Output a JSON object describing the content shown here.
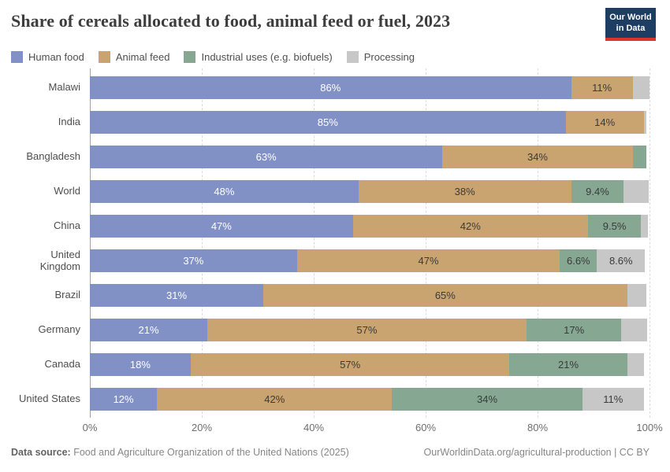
{
  "header": {
    "title": "Share of cereals allocated to food, animal feed or fuel, 2023",
    "logo": {
      "line1": "Our World",
      "line2": "in Data"
    }
  },
  "legend": {
    "items": [
      {
        "label": "Human food",
        "color": "#8191c6"
      },
      {
        "label": "Animal feed",
        "color": "#c9a470"
      },
      {
        "label": "Industrial uses (e.g. biofuels)",
        "color": "#86a893"
      },
      {
        "label": "Processing",
        "color": "#c7c7c7"
      }
    ]
  },
  "chart_data": {
    "type": "bar",
    "orientation": "horizontal",
    "stacked": true,
    "title": "Share of cereals allocated to food, animal feed or fuel, 2023",
    "categories": [
      "Malawi",
      "India",
      "Bangladesh",
      "World",
      "China",
      "United Kingdom",
      "Brazil",
      "Germany",
      "Canada",
      "United States"
    ],
    "series": [
      {
        "name": "Human food",
        "color": "#8191c6",
        "label_color": "#ffffff",
        "values": [
          86,
          85,
          63,
          48,
          47,
          37,
          31,
          21,
          18,
          12
        ],
        "labels": [
          "86%",
          "85%",
          "63%",
          "48%",
          "47%",
          "37%",
          "31%",
          "21%",
          "18%",
          "12%"
        ]
      },
      {
        "name": "Animal feed",
        "color": "#c9a470",
        "label_color": "#3a3a3a",
        "values": [
          11,
          14,
          34,
          38,
          42,
          47,
          65,
          57,
          57,
          42
        ],
        "labels": [
          "11%",
          "14%",
          "34%",
          "38%",
          "42%",
          "47%",
          "65%",
          "57%",
          "57%",
          "42%"
        ]
      },
      {
        "name": "Industrial uses (e.g. biofuels)",
        "color": "#86a893",
        "label_color": "#3a3a3a",
        "values": [
          0,
          0,
          2.5,
          9.4,
          9.5,
          6.6,
          0,
          17,
          21,
          34
        ],
        "labels": [
          "",
          "",
          "",
          "9.4%",
          "9.5%",
          "6.6%",
          "",
          "17%",
          "21%",
          "34%"
        ]
      },
      {
        "name": "Processing",
        "color": "#c7c7c7",
        "label_color": "#3a3a3a",
        "values": [
          3,
          0.5,
          0,
          4.4,
          1.2,
          8.6,
          3.5,
          4.6,
          3,
          11
        ],
        "labels": [
          "",
          "",
          "",
          "",
          "",
          "8.6%",
          "",
          "",
          "",
          "11%"
        ]
      }
    ],
    "xticks": [
      "0%",
      "20%",
      "40%",
      "60%",
      "80%",
      "100%"
    ],
    "xtick_values": [
      0,
      20,
      40,
      60,
      80,
      100
    ],
    "xlim": [
      0,
      100
    ],
    "grid": true,
    "legend_position": "top"
  },
  "footer": {
    "source_label": "Data source:",
    "source_text": "Food and Agriculture Organization of the United Nations (2025)",
    "credit_text": "OurWorldinData.org/agricultural-production | CC BY"
  }
}
